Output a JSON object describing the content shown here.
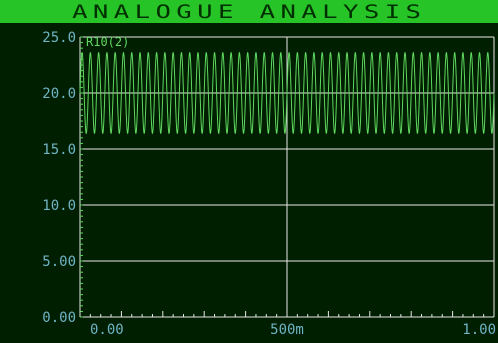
{
  "window": {
    "title": "ANALOGUE ANALYSIS"
  },
  "colors": {
    "background": "#001e00",
    "title_bar": "#27c427",
    "title_text": "#003000",
    "grid": "#e8e8e8",
    "axis_labels": "#6fb4c4",
    "trace": "#5fd85f"
  },
  "chart_data": {
    "type": "line",
    "title": "ANALOGUE ANALYSIS",
    "xlabel": "",
    "ylabel": "",
    "xlim": [
      0,
      1.0
    ],
    "ylim": [
      0,
      25
    ],
    "grid": true,
    "x_ticks": [
      {
        "value": 0,
        "label": "0.00"
      },
      {
        "value": 0.5,
        "label": "500m"
      },
      {
        "value": 1.0,
        "label": "1.00"
      }
    ],
    "y_ticks": [
      {
        "value": 0,
        "label": "0.00"
      },
      {
        "value": 5,
        "label": "5.00"
      },
      {
        "value": 10,
        "label": "10.0"
      },
      {
        "value": 15,
        "label": "15.0"
      },
      {
        "value": 20,
        "label": "20.0"
      },
      {
        "value": 25,
        "label": "25.0"
      }
    ],
    "series": [
      {
        "name": "R10(2)",
        "color": "#5fd85f",
        "waveform": "sine",
        "offset": 20.0,
        "amplitude": 3.6,
        "frequency_hz": 50
      }
    ]
  }
}
